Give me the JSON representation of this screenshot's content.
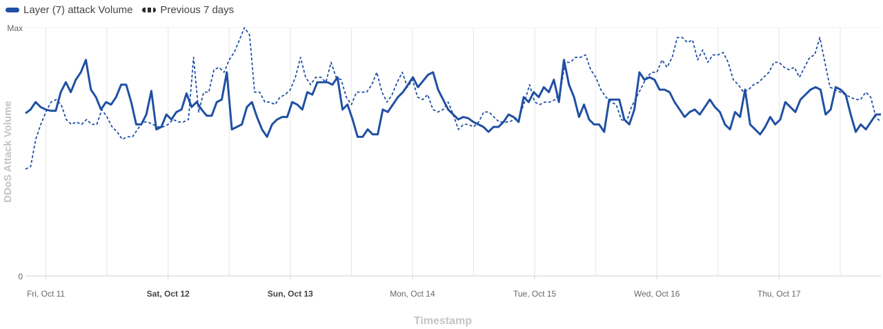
{
  "chart_data": {
    "type": "line",
    "xlabel": "Timestamp",
    "ylabel": "DDoS Attack Volume",
    "ytick_labels": [
      "0",
      "Max"
    ],
    "ylim": [
      0,
      1
    ],
    "x_range": [
      "2024-10-10T20:00",
      "2024-10-17T20:00"
    ],
    "x_tick_labels": [
      {
        "label": "Fri, Oct 11",
        "value": "2024-10-11T00:00",
        "bold": false
      },
      {
        "label": "Sat, Oct 12",
        "value": "2024-10-12T00:00",
        "bold": true
      },
      {
        "label": "Sun, Oct 13",
        "value": "2024-10-13T00:00",
        "bold": true
      },
      {
        "label": "Mon, Oct 14",
        "value": "2024-10-14T00:00",
        "bold": false
      },
      {
        "label": "Tue, Oct 15",
        "value": "2024-10-15T00:00",
        "bold": false
      },
      {
        "label": "Wed, Oct 16",
        "value": "2024-10-16T00:00",
        "bold": false
      },
      {
        "label": "Thu, Oct 17",
        "value": "2024-10-17T00:00",
        "bold": false
      }
    ],
    "grid": "vertical",
    "legend_position": "top-left",
    "series": [
      {
        "name": "Layer (7) attack Volume",
        "style": "solid",
        "color": "#1f4fa3",
        "values": [
          0.655,
          0.67,
          0.7,
          0.68,
          0.67,
          0.665,
          0.665,
          0.74,
          0.78,
          0.74,
          0.79,
          0.82,
          0.87,
          0.75,
          0.72,
          0.67,
          0.7,
          0.69,
          0.72,
          0.77,
          0.77,
          0.7,
          0.61,
          0.61,
          0.65,
          0.745,
          0.59,
          0.6,
          0.65,
          0.63,
          0.66,
          0.67,
          0.735,
          0.68,
          0.7,
          0.67,
          0.645,
          0.645,
          0.7,
          0.71,
          0.82,
          0.59,
          0.6,
          0.61,
          0.68,
          0.7,
          0.64,
          0.59,
          0.56,
          0.61,
          0.63,
          0.64,
          0.64,
          0.7,
          0.69,
          0.67,
          0.74,
          0.73,
          0.78,
          0.78,
          0.78,
          0.77,
          0.8,
          0.67,
          0.69,
          0.63,
          0.56,
          0.56,
          0.59,
          0.57,
          0.57,
          0.67,
          0.66,
          0.69,
          0.72,
          0.74,
          0.77,
          0.8,
          0.76,
          0.785,
          0.81,
          0.82,
          0.75,
          0.71,
          0.67,
          0.65,
          0.63,
          0.64,
          0.635,
          0.62,
          0.61,
          0.6,
          0.58,
          0.6,
          0.6,
          0.62,
          0.65,
          0.64,
          0.62,
          0.72,
          0.7,
          0.74,
          0.72,
          0.76,
          0.74,
          0.79,
          0.7,
          0.87,
          0.77,
          0.72,
          0.64,
          0.69,
          0.63,
          0.61,
          0.61,
          0.58,
          0.71,
          0.71,
          0.71,
          0.63,
          0.61,
          0.67,
          0.82,
          0.79,
          0.8,
          0.79,
          0.75,
          0.75,
          0.74,
          0.7,
          0.67,
          0.64,
          0.66,
          0.67,
          0.65,
          0.68,
          0.71,
          0.68,
          0.66,
          0.61,
          0.59,
          0.66,
          0.64,
          0.75,
          0.61,
          0.59,
          0.57,
          0.6,
          0.64,
          0.61,
          0.63,
          0.7,
          0.68,
          0.66,
          0.71,
          0.73,
          0.75,
          0.76,
          0.75,
          0.65,
          0.67,
          0.76,
          0.75,
          0.73,
          0.65,
          0.58,
          0.61,
          0.59,
          0.62,
          0.65,
          0.65
        ]
      },
      {
        "name": "Previous 7 days",
        "style": "dotted",
        "color": "#1f4fa3",
        "values": [
          0.43,
          0.44,
          0.55,
          0.61,
          0.66,
          0.7,
          0.71,
          0.69,
          0.63,
          0.61,
          0.62,
          0.61,
          0.63,
          0.61,
          0.61,
          0.67,
          0.64,
          0.6,
          0.58,
          0.55,
          0.56,
          0.56,
          0.59,
          0.62,
          0.62,
          0.61,
          0.6,
          0.6,
          0.61,
          0.63,
          0.62,
          0.62,
          0.63,
          0.88,
          0.66,
          0.74,
          0.74,
          0.83,
          0.84,
          0.82,
          0.87,
          0.9,
          0.95,
          1.0,
          0.97,
          0.74,
          0.74,
          0.7,
          0.7,
          0.69,
          0.72,
          0.73,
          0.75,
          0.8,
          0.88,
          0.8,
          0.77,
          0.8,
          0.8,
          0.78,
          0.86,
          0.8,
          0.79,
          0.72,
          0.69,
          0.74,
          0.74,
          0.74,
          0.77,
          0.82,
          0.74,
          0.7,
          0.73,
          0.78,
          0.82,
          0.76,
          0.79,
          0.72,
          0.71,
          0.73,
          0.67,
          0.66,
          0.67,
          0.7,
          0.65,
          0.59,
          0.61,
          0.61,
          0.6,
          0.62,
          0.66,
          0.66,
          0.64,
          0.62,
          0.62,
          0.62,
          0.63,
          0.64,
          0.7,
          0.77,
          0.7,
          0.69,
          0.7,
          0.7,
          0.71,
          0.74,
          0.86,
          0.86,
          0.88,
          0.88,
          0.89,
          0.83,
          0.8,
          0.75,
          0.72,
          0.7,
          0.69,
          0.63,
          0.62,
          0.68,
          0.72,
          0.76,
          0.8,
          0.82,
          0.82,
          0.87,
          0.84,
          0.88,
          0.96,
          0.96,
          0.94,
          0.95,
          0.87,
          0.91,
          0.86,
          0.89,
          0.89,
          0.9,
          0.86,
          0.79,
          0.77,
          0.74,
          0.75,
          0.77,
          0.78,
          0.8,
          0.82,
          0.86,
          0.86,
          0.84,
          0.83,
          0.84,
          0.8,
          0.84,
          0.88,
          0.89,
          0.96,
          0.86,
          0.76,
          0.75,
          0.74,
          0.73,
          0.72,
          0.71,
          0.71,
          0.74,
          0.72,
          0.64,
          0.62
        ]
      }
    ]
  }
}
